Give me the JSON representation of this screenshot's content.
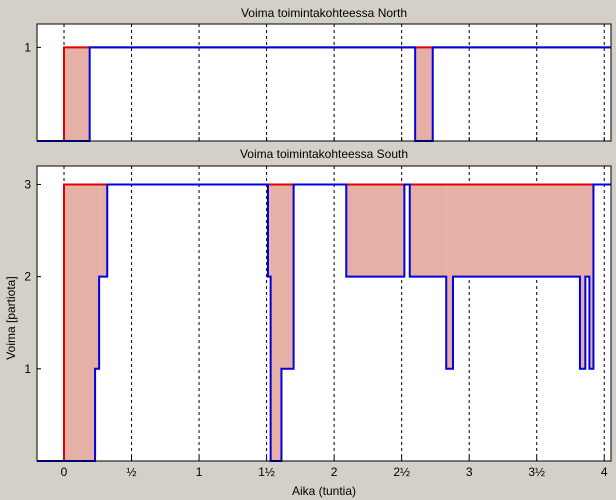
{
  "colors": {
    "figure_bg": "#d4d0c8",
    "axes_bg": "#ffffff",
    "requirement_line": "#e00000",
    "available_line": "#0000e0",
    "deficit_fill": "#e6b0a6"
  },
  "xaxis": {
    "label": "Aika (tuntia)",
    "ticks": [
      0,
      0.5,
      1,
      1.5,
      2,
      2.5,
      3,
      3.5,
      4
    ],
    "tick_labels": [
      "0",
      "½",
      "1",
      "1½",
      "2",
      "2½",
      "3",
      "3½",
      "4"
    ],
    "range": [
      -0.2,
      4.05
    ]
  },
  "ylabel": "Voima [partiota]",
  "grid": "vertical-dashed",
  "chart_data": [
    {
      "type": "line",
      "title": "Voima toimintakohteessa North",
      "xlabel": "",
      "ylabel": "",
      "ylim": [
        0,
        1.25
      ],
      "yticks": [
        1
      ],
      "ytick_labels": [
        "1"
      ],
      "series": [
        {
          "role": "requirement",
          "x": [
            -0.2,
            0,
            0,
            4.05
          ],
          "values": [
            0,
            0,
            1,
            1
          ]
        },
        {
          "role": "available",
          "x": [
            -0.2,
            0.19,
            0.19,
            2.6,
            2.6,
            2.73,
            2.73,
            4.05
          ],
          "values": [
            0,
            0,
            1,
            1,
            0,
            0,
            1,
            1
          ]
        }
      ]
    },
    {
      "type": "line",
      "title": "Voima toimintakohteessa South",
      "xlabel": "Aika (tuntia)",
      "ylabel": "Voima [partiota]",
      "ylim": [
        0,
        3.2
      ],
      "yticks": [
        1,
        2,
        3
      ],
      "ytick_labels": [
        "1",
        "2",
        "3"
      ],
      "series": [
        {
          "role": "requirement",
          "x": [
            -0.2,
            0,
            0,
            4.05
          ],
          "values": [
            0,
            0,
            3,
            3
          ]
        },
        {
          "role": "available",
          "x": [
            -0.2,
            0.23,
            0.23,
            0.26,
            0.26,
            0.32,
            0.32,
            4.05
          ],
          "values": [
            0,
            0,
            1,
            1,
            2,
            2,
            3,
            3
          ]
        }
      ],
      "available_full": {
        "x": [
          -0.2,
          0.23,
          0.23,
          0.26,
          0.26,
          0.32,
          0.32,
          1.51,
          1.51,
          1.53,
          1.53,
          1.61,
          1.61,
          1.7,
          1.7,
          2.09,
          2.09,
          2.52,
          2.52,
          2.56,
          2.56,
          2.83,
          2.83,
          2.88,
          2.88,
          3.82,
          3.82,
          3.86,
          3.86,
          3.89,
          3.89,
          3.92,
          3.92,
          3.95,
          3.95,
          4.05
        ],
        "values": [
          0,
          0,
          1,
          1,
          2,
          2,
          3,
          3,
          2,
          2,
          0,
          0,
          1,
          1,
          3,
          3,
          2,
          2,
          3,
          3,
          2,
          2,
          1,
          1,
          2,
          2,
          1,
          1,
          2,
          2,
          1,
          1,
          3,
          3,
          3,
          3
        ]
      }
    }
  ]
}
